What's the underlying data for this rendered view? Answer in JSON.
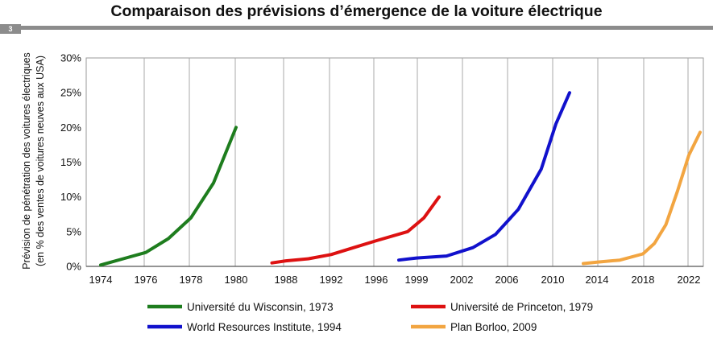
{
  "slide": {
    "title": "Comparaison des prévisions d’émergence de la voiture électrique",
    "number": "3"
  },
  "chart_data": {
    "type": "line",
    "ylabel_line1": "Prévision de pénétration des voitures électriques",
    "ylabel_line2": "(en % des ventes de voitures neuves aux USA)",
    "ylim": [
      0,
      30
    ],
    "yticks": [
      "0%",
      "5%",
      "10%",
      "15%",
      "20%",
      "25%",
      "30%"
    ],
    "segments": [
      {
        "ticks": [
          "1974",
          "1976",
          "1978",
          "1980"
        ]
      },
      {
        "ticks": [
          "1988",
          "1992",
          "1996"
        ]
      },
      {
        "ticks": [
          "1999",
          "2002",
          "2006",
          "2010"
        ]
      },
      {
        "ticks": [
          "2014",
          "2018",
          "2022"
        ]
      }
    ],
    "series": [
      {
        "name": "Université du Wisconsin, 1973",
        "color": "#1e7d1e",
        "x": [
          1974,
          1975,
          1976,
          1977,
          1978,
          1979,
          1980
        ],
        "y": [
          0.2,
          1.1,
          2.0,
          4.0,
          7.0,
          12.0,
          20.0
        ]
      },
      {
        "name": "Université de Princeton, 1979",
        "color": "#dd1111",
        "x": [
          1987,
          1988,
          1990,
          1992,
          1994,
          1996,
          1998,
          1999.5,
          2000.5
        ],
        "y": [
          0.5,
          0.8,
          1.1,
          1.7,
          2.7,
          3.7,
          5.0,
          7.0,
          10.0
        ]
      },
      {
        "name": "World Resources Institute, 1994",
        "color": "#1111cc",
        "x": [
          1997,
          1999,
          2001,
          2003,
          2005,
          2007,
          2009,
          2011,
          2012
        ],
        "y": [
          0.9,
          1.2,
          1.5,
          2.7,
          4.6,
          8.2,
          14.0,
          20.5,
          25.0
        ]
      },
      {
        "name": "Plan Borloo, 2009",
        "color": "#f2a541",
        "x": [
          2013,
          2014,
          2016,
          2018,
          2019,
          2020,
          2021,
          2022,
          2023
        ],
        "y": [
          0.4,
          0.6,
          0.9,
          1.8,
          3.3,
          6.0,
          10.8,
          16.0,
          19.3
        ]
      }
    ]
  }
}
